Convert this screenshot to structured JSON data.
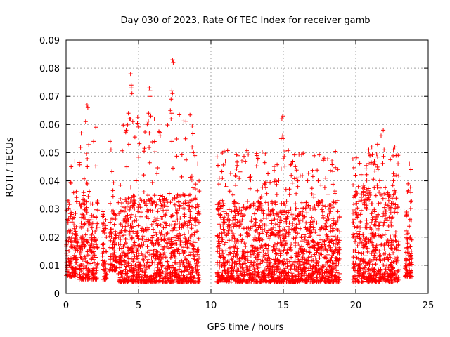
{
  "chart_data": {
    "type": "scatter",
    "title": "Day 030 of 2023, Rate Of TEC Index for receiver gamb",
    "xlabel": "GPS time / hours",
    "ylabel": "ROTI / TECUs",
    "xlim": [
      0,
      25
    ],
    "ylim": [
      0,
      0.09
    ],
    "xticks": [
      0,
      5,
      10,
      15,
      20,
      25
    ],
    "yticks": [
      0,
      0.01,
      0.02,
      0.03,
      0.04,
      0.05,
      0.06,
      0.07,
      0.08,
      0.09
    ],
    "xtick_labels": [
      "0",
      "5",
      "10",
      "15",
      "20",
      "25"
    ],
    "ytick_labels": [
      "0",
      "0.01",
      "0.02",
      "0.03",
      "0.04",
      "0.05",
      "0.06",
      "0.07",
      "0.08",
      "0.09"
    ],
    "grid": true,
    "marker": "+",
    "marker_color": "#ff0000",
    "data_segments": [
      {
        "x_range": [
          0.0,
          0.8
        ],
        "y_base": [
          0.006,
          0.03
        ],
        "y_peak": 0.047
      },
      {
        "x_range": [
          0.9,
          2.2
        ],
        "y_base": [
          0.005,
          0.035
        ],
        "y_peak": 0.067
      },
      {
        "x_range": [
          2.5,
          2.8
        ],
        "y_base": [
          0.005,
          0.025
        ],
        "y_peak": 0.033
      },
      {
        "x_range": [
          3.0,
          3.5
        ],
        "y_base": [
          0.008,
          0.03
        ],
        "y_peak": 0.054
      },
      {
        "x_range": [
          3.6,
          9.2
        ],
        "y_base": [
          0.004,
          0.035
        ],
        "y_peak": 0.083
      },
      {
        "x_range": [
          10.4,
          18.9
        ],
        "y_base": [
          0.004,
          0.033
        ],
        "y_peak": 0.063
      },
      {
        "x_range": [
          19.8,
          23.0
        ],
        "y_base": [
          0.004,
          0.038
        ],
        "y_peak": 0.058
      },
      {
        "x_range": [
          23.4,
          23.9
        ],
        "y_base": [
          0.006,
          0.03
        ],
        "y_peak": 0.046
      }
    ],
    "highlight_points": [
      {
        "x": 1.45,
        "y": 0.067
      },
      {
        "x": 1.5,
        "y": 0.066
      },
      {
        "x": 1.35,
        "y": 0.061
      },
      {
        "x": 1.05,
        "y": 0.057
      },
      {
        "x": 2.05,
        "y": 0.059
      },
      {
        "x": 1.9,
        "y": 0.054
      },
      {
        "x": 3.05,
        "y": 0.054
      },
      {
        "x": 3.1,
        "y": 0.051
      },
      {
        "x": 4.45,
        "y": 0.078
      },
      {
        "x": 4.5,
        "y": 0.074
      },
      {
        "x": 4.5,
        "y": 0.073
      },
      {
        "x": 4.55,
        "y": 0.071
      },
      {
        "x": 4.4,
        "y": 0.062
      },
      {
        "x": 4.6,
        "y": 0.061
      },
      {
        "x": 4.15,
        "y": 0.058
      },
      {
        "x": 4.3,
        "y": 0.064
      },
      {
        "x": 5.75,
        "y": 0.073
      },
      {
        "x": 5.8,
        "y": 0.072
      },
      {
        "x": 5.8,
        "y": 0.07
      },
      {
        "x": 5.7,
        "y": 0.064
      },
      {
        "x": 5.85,
        "y": 0.063
      },
      {
        "x": 5.6,
        "y": 0.06
      },
      {
        "x": 5.75,
        "y": 0.057
      },
      {
        "x": 7.35,
        "y": 0.083
      },
      {
        "x": 7.4,
        "y": 0.082
      },
      {
        "x": 7.3,
        "y": 0.072
      },
      {
        "x": 7.35,
        "y": 0.071
      },
      {
        "x": 7.25,
        "y": 0.069
      },
      {
        "x": 7.2,
        "y": 0.065
      },
      {
        "x": 7.3,
        "y": 0.064
      },
      {
        "x": 7.25,
        "y": 0.062
      },
      {
        "x": 6.5,
        "y": 0.056
      },
      {
        "x": 7.3,
        "y": 0.054
      },
      {
        "x": 8.7,
        "y": 0.052
      },
      {
        "x": 8.8,
        "y": 0.05
      },
      {
        "x": 14.95,
        "y": 0.063
      },
      {
        "x": 14.9,
        "y": 0.062
      },
      {
        "x": 14.95,
        "y": 0.056
      },
      {
        "x": 14.85,
        "y": 0.055
      },
      {
        "x": 15.0,
        "y": 0.055
      },
      {
        "x": 13.15,
        "y": 0.049
      },
      {
        "x": 13.25,
        "y": 0.048
      },
      {
        "x": 13.2,
        "y": 0.047
      },
      {
        "x": 21.9,
        "y": 0.058
      },
      {
        "x": 21.75,
        "y": 0.056
      },
      {
        "x": 21.5,
        "y": 0.053
      },
      {
        "x": 21.95,
        "y": 0.051
      },
      {
        "x": 22.7,
        "y": 0.052
      },
      {
        "x": 22.6,
        "y": 0.051
      },
      {
        "x": 21.1,
        "y": 0.052
      },
      {
        "x": 20.9,
        "y": 0.051
      },
      {
        "x": 16.0,
        "y": 0.04
      },
      {
        "x": 17.4,
        "y": 0.04
      },
      {
        "x": 11.0,
        "y": 0.047
      },
      {
        "x": 23.7,
        "y": 0.046
      },
      {
        "x": 23.8,
        "y": 0.044
      },
      {
        "x": 0.6,
        "y": 0.047
      },
      {
        "x": 0.35,
        "y": 0.045
      }
    ]
  }
}
